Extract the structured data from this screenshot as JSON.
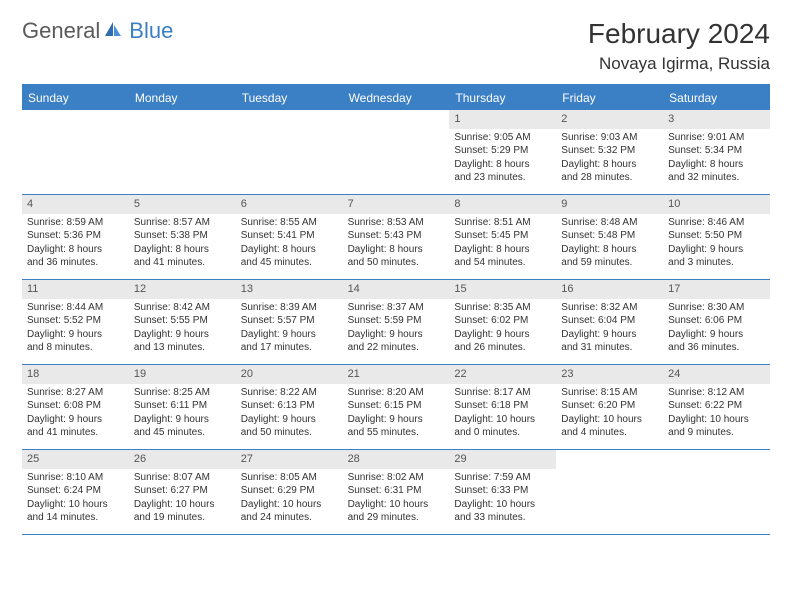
{
  "brand": {
    "part1": "General",
    "part2": "Blue"
  },
  "title": "February 2024",
  "location": "Novaya Igirma, Russia",
  "colors": {
    "accent": "#3b7fc4",
    "header_bg": "#3b7fc4",
    "daynum_bg": "#e9e9e9",
    "text": "#333333"
  },
  "weekdays": [
    "Sunday",
    "Monday",
    "Tuesday",
    "Wednesday",
    "Thursday",
    "Friday",
    "Saturday"
  ],
  "weeks": [
    [
      null,
      null,
      null,
      null,
      {
        "n": "1",
        "sunrise": "Sunrise: 9:05 AM",
        "sunset": "Sunset: 5:29 PM",
        "d1": "Daylight: 8 hours",
        "d2": "and 23 minutes."
      },
      {
        "n": "2",
        "sunrise": "Sunrise: 9:03 AM",
        "sunset": "Sunset: 5:32 PM",
        "d1": "Daylight: 8 hours",
        "d2": "and 28 minutes."
      },
      {
        "n": "3",
        "sunrise": "Sunrise: 9:01 AM",
        "sunset": "Sunset: 5:34 PM",
        "d1": "Daylight: 8 hours",
        "d2": "and 32 minutes."
      }
    ],
    [
      {
        "n": "4",
        "sunrise": "Sunrise: 8:59 AM",
        "sunset": "Sunset: 5:36 PM",
        "d1": "Daylight: 8 hours",
        "d2": "and 36 minutes."
      },
      {
        "n": "5",
        "sunrise": "Sunrise: 8:57 AM",
        "sunset": "Sunset: 5:38 PM",
        "d1": "Daylight: 8 hours",
        "d2": "and 41 minutes."
      },
      {
        "n": "6",
        "sunrise": "Sunrise: 8:55 AM",
        "sunset": "Sunset: 5:41 PM",
        "d1": "Daylight: 8 hours",
        "d2": "and 45 minutes."
      },
      {
        "n": "7",
        "sunrise": "Sunrise: 8:53 AM",
        "sunset": "Sunset: 5:43 PM",
        "d1": "Daylight: 8 hours",
        "d2": "and 50 minutes."
      },
      {
        "n": "8",
        "sunrise": "Sunrise: 8:51 AM",
        "sunset": "Sunset: 5:45 PM",
        "d1": "Daylight: 8 hours",
        "d2": "and 54 minutes."
      },
      {
        "n": "9",
        "sunrise": "Sunrise: 8:48 AM",
        "sunset": "Sunset: 5:48 PM",
        "d1": "Daylight: 8 hours",
        "d2": "and 59 minutes."
      },
      {
        "n": "10",
        "sunrise": "Sunrise: 8:46 AM",
        "sunset": "Sunset: 5:50 PM",
        "d1": "Daylight: 9 hours",
        "d2": "and 3 minutes."
      }
    ],
    [
      {
        "n": "11",
        "sunrise": "Sunrise: 8:44 AM",
        "sunset": "Sunset: 5:52 PM",
        "d1": "Daylight: 9 hours",
        "d2": "and 8 minutes."
      },
      {
        "n": "12",
        "sunrise": "Sunrise: 8:42 AM",
        "sunset": "Sunset: 5:55 PM",
        "d1": "Daylight: 9 hours",
        "d2": "and 13 minutes."
      },
      {
        "n": "13",
        "sunrise": "Sunrise: 8:39 AM",
        "sunset": "Sunset: 5:57 PM",
        "d1": "Daylight: 9 hours",
        "d2": "and 17 minutes."
      },
      {
        "n": "14",
        "sunrise": "Sunrise: 8:37 AM",
        "sunset": "Sunset: 5:59 PM",
        "d1": "Daylight: 9 hours",
        "d2": "and 22 minutes."
      },
      {
        "n": "15",
        "sunrise": "Sunrise: 8:35 AM",
        "sunset": "Sunset: 6:02 PM",
        "d1": "Daylight: 9 hours",
        "d2": "and 26 minutes."
      },
      {
        "n": "16",
        "sunrise": "Sunrise: 8:32 AM",
        "sunset": "Sunset: 6:04 PM",
        "d1": "Daylight: 9 hours",
        "d2": "and 31 minutes."
      },
      {
        "n": "17",
        "sunrise": "Sunrise: 8:30 AM",
        "sunset": "Sunset: 6:06 PM",
        "d1": "Daylight: 9 hours",
        "d2": "and 36 minutes."
      }
    ],
    [
      {
        "n": "18",
        "sunrise": "Sunrise: 8:27 AM",
        "sunset": "Sunset: 6:08 PM",
        "d1": "Daylight: 9 hours",
        "d2": "and 41 minutes."
      },
      {
        "n": "19",
        "sunrise": "Sunrise: 8:25 AM",
        "sunset": "Sunset: 6:11 PM",
        "d1": "Daylight: 9 hours",
        "d2": "and 45 minutes."
      },
      {
        "n": "20",
        "sunrise": "Sunrise: 8:22 AM",
        "sunset": "Sunset: 6:13 PM",
        "d1": "Daylight: 9 hours",
        "d2": "and 50 minutes."
      },
      {
        "n": "21",
        "sunrise": "Sunrise: 8:20 AM",
        "sunset": "Sunset: 6:15 PM",
        "d1": "Daylight: 9 hours",
        "d2": "and 55 minutes."
      },
      {
        "n": "22",
        "sunrise": "Sunrise: 8:17 AM",
        "sunset": "Sunset: 6:18 PM",
        "d1": "Daylight: 10 hours",
        "d2": "and 0 minutes."
      },
      {
        "n": "23",
        "sunrise": "Sunrise: 8:15 AM",
        "sunset": "Sunset: 6:20 PM",
        "d1": "Daylight: 10 hours",
        "d2": "and 4 minutes."
      },
      {
        "n": "24",
        "sunrise": "Sunrise: 8:12 AM",
        "sunset": "Sunset: 6:22 PM",
        "d1": "Daylight: 10 hours",
        "d2": "and 9 minutes."
      }
    ],
    [
      {
        "n": "25",
        "sunrise": "Sunrise: 8:10 AM",
        "sunset": "Sunset: 6:24 PM",
        "d1": "Daylight: 10 hours",
        "d2": "and 14 minutes."
      },
      {
        "n": "26",
        "sunrise": "Sunrise: 8:07 AM",
        "sunset": "Sunset: 6:27 PM",
        "d1": "Daylight: 10 hours",
        "d2": "and 19 minutes."
      },
      {
        "n": "27",
        "sunrise": "Sunrise: 8:05 AM",
        "sunset": "Sunset: 6:29 PM",
        "d1": "Daylight: 10 hours",
        "d2": "and 24 minutes."
      },
      {
        "n": "28",
        "sunrise": "Sunrise: 8:02 AM",
        "sunset": "Sunset: 6:31 PM",
        "d1": "Daylight: 10 hours",
        "d2": "and 29 minutes."
      },
      {
        "n": "29",
        "sunrise": "Sunrise: 7:59 AM",
        "sunset": "Sunset: 6:33 PM",
        "d1": "Daylight: 10 hours",
        "d2": "and 33 minutes."
      },
      null,
      null
    ]
  ]
}
